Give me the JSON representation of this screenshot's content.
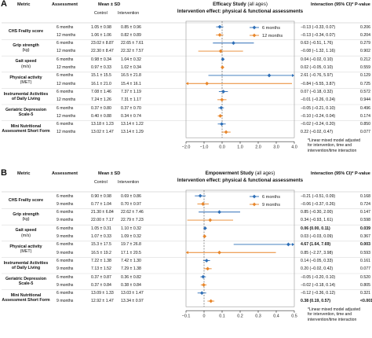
{
  "chart_data": [
    {
      "type": "forest",
      "panel_label": "A",
      "title": "Efficacy Study",
      "title_suffix": "(all ages)",
      "subtitle": "Intervention effect: physical & functional assessments",
      "headers": {
        "metric": "Metric",
        "assessment": "Assessment",
        "mean_sd": "Mean ± SD",
        "control": "Control",
        "intervention": "Intervention",
        "interaction": "Interaction (95% CI)*",
        "pvalue": "P-value"
      },
      "series": [
        {
          "name": "6 months",
          "color": "#2e6fb7"
        },
        {
          "name": "12 months",
          "color": "#e8862a"
        }
      ],
      "xlim": [
        -2.0,
        4.0
      ],
      "xticks": [
        "−2.0",
        "−1.0",
        "0.0",
        "1.0",
        "2.0",
        "3.0",
        "4.0"
      ],
      "tick_values": [
        -2,
        -1,
        0,
        1,
        2,
        3,
        4
      ],
      "metrics": [
        {
          "name": "CHS Frailty score",
          "unit": ""
        },
        {
          "name": "Grip strength",
          "unit": "(kg)"
        },
        {
          "name": "Gait speed",
          "unit": "(m/s)"
        },
        {
          "name": "Physical activity",
          "unit": "(MET)"
        },
        {
          "name": "Instrumental Activities of Daily Living",
          "unit": ""
        },
        {
          "name": "Geriatric Depression Scale-5",
          "unit": ""
        },
        {
          "name": "Mini Nutritional Assessment Short Form",
          "unit": ""
        }
      ],
      "rows": [
        {
          "assessment": "6 months",
          "control": "1.05 ± 0.98",
          "intervention": "0.85 ± 0.96",
          "interaction": "−0.13 (−0.33, 0.07)",
          "pvalue": "0.206",
          "est": -0.13,
          "lo": -0.33,
          "hi": 0.07,
          "series": 0,
          "bold": false
        },
        {
          "assessment": "12 months",
          "control": "1.06 ± 1.06",
          "intervention": "0.82 ± 0.89",
          "interaction": "−0.13 (−0.34, 0.07)",
          "pvalue": "0.204",
          "est": -0.13,
          "lo": -0.34,
          "hi": 0.07,
          "series": 1,
          "bold": false
        },
        {
          "assessment": "6 months",
          "control": "23.02 ± 8.87",
          "intervention": "22.65 ± 7.61",
          "interaction": "0.63 (−0.51, 1.76)",
          "pvalue": "0.279",
          "est": 0.63,
          "lo": -0.51,
          "hi": 1.76,
          "series": 0,
          "bold": false
        },
        {
          "assessment": "12 months",
          "control": "22.30 ± 8.47",
          "intervention": "22.32 ± 7.57",
          "interaction": "−0.08 (−1.32, 1.16)",
          "pvalue": "0.902",
          "est": -0.08,
          "lo": -1.32,
          "hi": 1.16,
          "series": 1,
          "bold": false
        },
        {
          "assessment": "6 months",
          "control": "0.98 ± 0.34",
          "intervention": "1.04 ± 0.32",
          "interaction": "0.04 (−0.02, 0.10)",
          "pvalue": "0.212",
          "est": 0.04,
          "lo": -0.02,
          "hi": 0.1,
          "series": 0,
          "bold": false
        },
        {
          "assessment": "12 months",
          "control": "0.97 ± 0.33",
          "intervention": "1.02 ± 0.34",
          "interaction": "0.02 (−0.05, 0.10)",
          "pvalue": "0.559",
          "est": 0.02,
          "lo": -0.05,
          "hi": 0.1,
          "series": 1,
          "bold": false
        },
        {
          "assessment": "6 months",
          "control": "15.1 ± 15.5",
          "intervention": "16.5 ± 21.8",
          "interaction": "2.61 (−0.76, 5.97)",
          "pvalue": "0.129",
          "est": 2.61,
          "lo": -0.76,
          "hi": 5.97,
          "series": 0,
          "bold": false
        },
        {
          "assessment": "12 months",
          "control": "16.1 ± 21.0",
          "intervention": "15.4 ± 16.1",
          "interaction": "−0.84 (−5.55, 3.87)",
          "pvalue": "0.725",
          "est": -0.84,
          "lo": -5.55,
          "hi": 3.87,
          "series": 1,
          "bold": false
        },
        {
          "assessment": "6 months",
          "control": "7.08 ± 1.46",
          "intervention": "7.37 ± 1.19",
          "interaction": "0.07 (−0.18, 0.32)",
          "pvalue": "0.572",
          "est": 0.07,
          "lo": -0.18,
          "hi": 0.32,
          "series": 0,
          "bold": false
        },
        {
          "assessment": "12 months",
          "control": "7.24 ± 1.26",
          "intervention": "7.31 ± 1.17",
          "interaction": "−0.01 (−0.26, 0.24)",
          "pvalue": "0.944",
          "est": -0.01,
          "lo": -0.26,
          "hi": 0.24,
          "series": 1,
          "bold": false
        },
        {
          "assessment": "6 months",
          "control": "0.37 ± 0.80",
          "intervention": "0.37 ± 0.70",
          "interaction": "−0.05 (−0.21, 0.10)",
          "pvalue": "0.496",
          "est": -0.05,
          "lo": -0.21,
          "hi": 0.1,
          "series": 0,
          "bold": false
        },
        {
          "assessment": "12 months",
          "control": "0.40 ± 0.88",
          "intervention": "0.34 ± 0.74",
          "interaction": "−0.10 (−0.24, 0.04)",
          "pvalue": "0.174",
          "est": -0.1,
          "lo": -0.24,
          "hi": 0.04,
          "series": 1,
          "bold": false
        },
        {
          "assessment": "6 months",
          "control": "13.18 ± 1.23",
          "intervention": "13.14 ± 1.22",
          "interaction": "−0.02 (−0.24, 0.20)",
          "pvalue": "0.850",
          "est": -0.02,
          "lo": -0.24,
          "hi": 0.2,
          "series": 0,
          "bold": false
        },
        {
          "assessment": "12 months",
          "control": "13.02 ± 1.47",
          "intervention": "13.14 ± 1.29",
          "interaction": "0.22 (−0.02, 0.47)",
          "pvalue": "0.077",
          "est": 0.22,
          "lo": -0.02,
          "hi": 0.47,
          "series": 1,
          "bold": false
        }
      ],
      "footnote": [
        "*Linear mixed model adjusted",
        "for intervention, time and",
        "intervention/time interaction"
      ]
    },
    {
      "type": "forest",
      "panel_label": "B",
      "title": "Empowerment Study",
      "title_suffix": "(all ages)",
      "subtitle": "Intervention effect: physical & functional assessments",
      "headers": {
        "metric": "Metric",
        "assessment": "Assessment",
        "mean_sd": "Mean ± SD",
        "control": "Control",
        "intervention": "Intervention",
        "interaction": "Interaction (95% CI)*",
        "pvalue": "P-value"
      },
      "series": [
        {
          "name": "6 months",
          "color": "#2e6fb7"
        },
        {
          "name": "9 months",
          "color": "#e8862a"
        }
      ],
      "xlim": [
        -0.1,
        0.5
      ],
      "xticks": [
        "−0.1",
        "0",
        "0.1",
        "0.2",
        "0.3",
        "0.4",
        "0.5"
      ],
      "tick_values": [
        -0.1,
        0,
        0.1,
        0.2,
        0.3,
        0.4,
        0.5
      ],
      "metrics": [
        {
          "name": "CHS Frailty score",
          "unit": ""
        },
        {
          "name": "Grip strength",
          "unit": "(kg)"
        },
        {
          "name": "Gait speed",
          "unit": "(m/s)"
        },
        {
          "name": "Physical activity",
          "unit": "(MET)"
        },
        {
          "name": "Instrumental Activities of Daily Living",
          "unit": ""
        },
        {
          "name": "Geriatric Depression Scale-5",
          "unit": ""
        },
        {
          "name": "Mini Nutritional Assessment Short Form",
          "unit": ""
        }
      ],
      "rows": [
        {
          "assessment": "6 months",
          "control": "0.90 ± 0.98",
          "intervention": "0.69 ± 0.86",
          "interaction": "−0.21 (−0.51, 0.09)",
          "pvalue": "0.168",
          "est": -0.021,
          "lo": -0.051,
          "hi": 0.009,
          "series": 0,
          "bold": false
        },
        {
          "assessment": "9 months",
          "control": "0.77 ± 1.04",
          "intervention": "0.70 ± 0.97",
          "interaction": "−0.06 (−0.37, 0.26)",
          "pvalue": "0.724",
          "est": -0.006,
          "lo": -0.037,
          "hi": 0.026,
          "series": 1,
          "bold": false
        },
        {
          "assessment": "6 months",
          "control": "21.30 ± 6.84",
          "intervention": "22.62 ± 7.46",
          "interaction": "0.85 (−0.30, 2.00)",
          "pvalue": "0.147",
          "est": 0.085,
          "lo": -0.03,
          "hi": 0.2,
          "series": 0,
          "bold": false
        },
        {
          "assessment": "9 months",
          "control": "22.00 ± 7.17",
          "intervention": "22.79 ± 7.23",
          "interaction": "0.34 (−0.93, 1.61)",
          "pvalue": "0.598",
          "est": 0.034,
          "lo": -0.093,
          "hi": 0.161,
          "series": 1,
          "bold": false
        },
        {
          "assessment": "6 months",
          "control": "1.05 ± 0.31",
          "intervention": "1.10 ± 0.32",
          "interaction": "0.06 (0.00, 0.11)",
          "pvalue": "0.039",
          "est": 0.006,
          "lo": 0.0,
          "hi": 0.011,
          "series": 0,
          "bold": true
        },
        {
          "assessment": "9 months",
          "control": "1.07 ± 0.33",
          "intervention": "1.09 ± 0.32",
          "interaction": "0.03 (−0.03, 0.09)",
          "pvalue": "0.367",
          "est": 0.003,
          "lo": -0.003,
          "hi": 0.009,
          "series": 1,
          "bold": false
        },
        {
          "assessment": "6 months",
          "control": "15.3 ± 17.5",
          "intervention": "19.7 ± 26.8",
          "interaction": "4.67 (1.64, 7.69)",
          "pvalue": "0.003",
          "est": 0.467,
          "lo": 0.164,
          "hi": 0.769,
          "series": 0,
          "bold": true
        },
        {
          "assessment": "9 months",
          "control": "16.5 ± 19.2",
          "intervention": "17.1 ± 20.5",
          "interaction": "0.85 (−2.27, 3.98)",
          "pvalue": "0.593",
          "est": 0.085,
          "lo": -0.227,
          "hi": 0.398,
          "series": 1,
          "bold": false
        },
        {
          "assessment": "6 months",
          "control": "7.22 ± 1.38",
          "intervention": "7.42 ± 1.30",
          "interaction": "0.14 (−0.05, 0.33)",
          "pvalue": "0.161",
          "est": 0.014,
          "lo": -0.005,
          "hi": 0.033,
          "series": 0,
          "bold": false
        },
        {
          "assessment": "9 months",
          "control": "7.13 ± 1.52",
          "intervention": "7.29 ± 1.38",
          "interaction": "0.20 (−0.02, 0.42)",
          "pvalue": "0.077",
          "est": 0.02,
          "lo": -0.002,
          "hi": 0.042,
          "series": 1,
          "bold": false
        },
        {
          "assessment": "6 months",
          "control": "0.37 ± 0.87",
          "intervention": "0.36 ± 0.82",
          "interaction": "−0.05 (−0.20, 0.10)",
          "pvalue": "0.520",
          "est": -0.005,
          "lo": -0.02,
          "hi": 0.01,
          "series": 0,
          "bold": false
        },
        {
          "assessment": "9 months",
          "control": "0.37 ± 0.84",
          "intervention": "0.38 ± 0.84",
          "interaction": "−0.02 (−0.18, 0.14)",
          "pvalue": "0.805",
          "est": -0.002,
          "lo": -0.018,
          "hi": 0.014,
          "series": 1,
          "bold": false
        },
        {
          "assessment": "6 months",
          "control": "13.09 ± 1.33",
          "intervention": "13.03 ± 1.47",
          "interaction": "−0.12 (−0.36, 0.12)",
          "pvalue": "0.321",
          "est": -0.012,
          "lo": -0.036,
          "hi": 0.012,
          "series": 0,
          "bold": false
        },
        {
          "assessment": "9 months",
          "control": "12.92 ± 1.47",
          "intervention": "13.34 ± 0.97",
          "interaction": "0.38 (0.19, 0.57)",
          "pvalue": "<0.001",
          "est": 0.038,
          "lo": 0.019,
          "hi": 0.057,
          "series": 1,
          "bold": true
        }
      ],
      "footnote": [
        "*Linear mixed model adjusted",
        "for intervention, time and",
        "intervention/time interaction"
      ]
    }
  ]
}
